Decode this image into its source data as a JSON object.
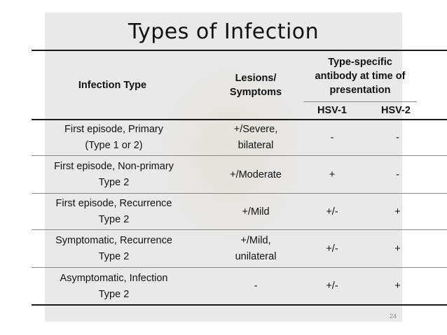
{
  "slide": {
    "title": "Types of Infection",
    "page_number": "24"
  },
  "table": {
    "headers": {
      "infection_type": "Infection Type",
      "lesions": "Lesions/ Symptoms",
      "antibody": "Type-specific antibody at time of presentation",
      "hsv1": "HSV-1",
      "hsv2": "HSV-2"
    },
    "rows": [
      {
        "type_line1": "First episode, Primary",
        "type_line2": "(Type 1 or 2)",
        "lesions_line1": "+/Severe,",
        "lesions_line2": "bilateral",
        "hsv1": "-",
        "hsv2": "-"
      },
      {
        "type_line1": "First episode, Non-primary",
        "type_line2": "Type 2",
        "lesions_line1": "+/Moderate",
        "lesions_line2": "",
        "hsv1": "+",
        "hsv2": "-"
      },
      {
        "type_line1": "First episode, Recurrence",
        "type_line2": "Type 2",
        "lesions_line1": "+/Mild",
        "lesions_line2": "",
        "hsv1": "+/-",
        "hsv2": "+"
      },
      {
        "type_line1": "Symptomatic, Recurrence",
        "type_line2": "Type 2",
        "lesions_line1": "+/Mild,",
        "lesions_line2": "unilateral",
        "hsv1": "+/-",
        "hsv2": "+"
      },
      {
        "type_line1": "Asymptomatic, Infection",
        "type_line2": "Type 2",
        "lesions_line1": "-",
        "lesions_line2": "",
        "hsv1": "+/-",
        "hsv2": "+"
      }
    ]
  }
}
